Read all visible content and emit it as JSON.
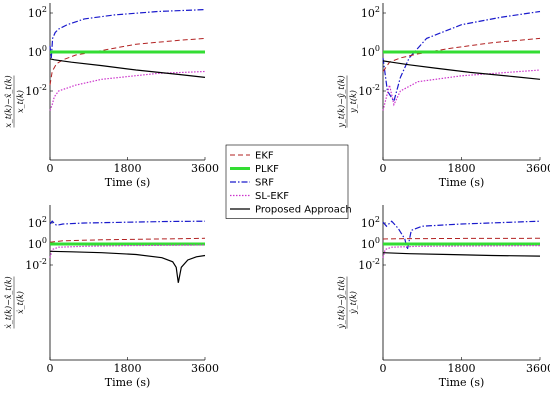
{
  "legend": [
    {
      "key": "ekf",
      "label": "EKF",
      "color": "#b22222",
      "dash": "5,3",
      "width": 1
    },
    {
      "key": "plkf",
      "label": "PLKF",
      "color": "#33dd33",
      "dash": "",
      "width": 3
    },
    {
      "key": "srf",
      "label": "SRF",
      "color": "#1a1acc",
      "dash": "6,2,1.5,2",
      "width": 1.2
    },
    {
      "key": "slekf",
      "label": "SL-EKF",
      "color": "#cc33cc",
      "dash": "1.5,1.5",
      "width": 1.2
    },
    {
      "key": "proposed",
      "label": "Proposed Approach",
      "color": "#000000",
      "dash": "",
      "width": 1.2
    }
  ],
  "chart_data": [
    {
      "id": "top-left",
      "type": "line",
      "xlabel": "Time (s)",
      "ylabel": "(x_t(k) − x̂_t(k)) / x_t(k)",
      "ylabel_num": "x_t(k)−x̂_t(k)",
      "ylabel_den": "x_t(k)",
      "xticks": [
        "0",
        "1800",
        "3600"
      ],
      "yticks": [
        "10^2",
        "10^0",
        "10^-2"
      ],
      "scale": "log",
      "xlim": [
        0,
        3600
      ],
      "series": [
        {
          "key": "srf",
          "x": [
            0,
            30,
            60,
            120,
            200,
            400,
            800,
            1500,
            2500,
            3600
          ],
          "y": [
            2,
            0.5,
            5,
            10,
            15,
            25,
            50,
            80,
            120,
            150
          ]
        },
        {
          "key": "ekf",
          "x": [
            0,
            50,
            150,
            300,
            600,
            1200,
            2000,
            3000,
            3600
          ],
          "y": [
            0.02,
            0.1,
            0.25,
            0.4,
            0.7,
            1.2,
            2.5,
            4,
            5
          ]
        },
        {
          "key": "plkf",
          "x": [
            0,
            3600
          ],
          "y": [
            1,
            1
          ]
        },
        {
          "key": "slekf",
          "x": [
            0,
            50,
            100,
            200,
            600,
            1200,
            2500,
            3600
          ],
          "y": [
            0.001,
            0.002,
            0.005,
            0.01,
            0.02,
            0.04,
            0.08,
            0.1
          ]
        },
        {
          "key": "proposed",
          "x": [
            0,
            100,
            500,
            1200,
            2000,
            3000,
            3600
          ],
          "y": [
            0.45,
            0.4,
            0.3,
            0.2,
            0.12,
            0.07,
            0.05
          ]
        }
      ]
    },
    {
      "id": "top-right",
      "type": "line",
      "xlabel": "Time (s)",
      "ylabel": "(y_t(k) − ŷ_t(k)) / y_t(k)",
      "ylabel_num": "y_t(k)−ŷ_t(k)",
      "ylabel_den": "y_t(k)",
      "xticks": [
        "0",
        "1800",
        "3600"
      ],
      "yticks": [
        "10^2",
        "10^0",
        "10^-2"
      ],
      "scale": "log",
      "xlim": [
        0,
        3600
      ],
      "series": [
        {
          "key": "srf",
          "x": [
            0,
            100,
            250,
            400,
            600,
            1000,
            1800,
            2700,
            3600
          ],
          "y": [
            0.5,
            0.01,
            0.003,
            0.05,
            0.5,
            5,
            25,
            60,
            120
          ]
        },
        {
          "key": "ekf",
          "x": [
            0,
            150,
            400,
            800,
            1500,
            2500,
            3600
          ],
          "y": [
            0.1,
            0.3,
            0.5,
            0.8,
            1.5,
            3,
            5
          ]
        },
        {
          "key": "plkf",
          "x": [
            0,
            3600
          ],
          "y": [
            1,
            1
          ]
        },
        {
          "key": "slekf",
          "x": [
            0,
            150,
            250,
            400,
            800,
            1800,
            3600
          ],
          "y": [
            0.001,
            0.02,
            0.002,
            0.01,
            0.03,
            0.06,
            0.12
          ]
        },
        {
          "key": "proposed",
          "x": [
            0,
            200,
            600,
            1200,
            2000,
            3000,
            3600
          ],
          "y": [
            0.35,
            0.3,
            0.22,
            0.15,
            0.09,
            0.055,
            0.04
          ]
        }
      ]
    },
    {
      "id": "bottom-left",
      "type": "line",
      "xlabel": "Time (s)",
      "ylabel": "(ẋ_t(k) − x̂̇_t(k)) / ẋ_t(k)",
      "ylabel_num": "ẋ_t(k)−x̂̇_t(k)",
      "ylabel_den": "ẋ_t(k)",
      "xticks": [
        "0",
        "1800",
        "3600"
      ],
      "yticks": [
        "10^2",
        "10^0",
        "10^-2"
      ],
      "scale": "log",
      "xlim": [
        0,
        3600
      ],
      "series": [
        {
          "key": "srf",
          "x": [
            0,
            50,
            150,
            300,
            800,
            1800,
            2700,
            3600
          ],
          "y": [
            80,
            150,
            60,
            80,
            100,
            120,
            140,
            150
          ]
        },
        {
          "key": "ekf",
          "x": [
            0,
            300,
            1200,
            2500,
            3600
          ],
          "y": [
            1.5,
            2,
            2.5,
            3,
            3.5
          ]
        },
        {
          "key": "plkf",
          "x": [
            0,
            3600
          ],
          "y": [
            1,
            1
          ]
        },
        {
          "key": "slekf",
          "x": [
            0,
            50,
            200,
            800,
            1800,
            3600
          ],
          "y": [
            0.05,
            0.3,
            0.5,
            0.6,
            0.7,
            0.8
          ]
        },
        {
          "key": "proposed",
          "x": [
            0,
            500,
            1200,
            2000,
            2600,
            2850,
            2930,
            2980,
            3050,
            3200,
            3400,
            3600
          ],
          "y": [
            0.2,
            0.18,
            0.15,
            0.1,
            0.05,
            0.02,
            0.006,
            0.0002,
            0.006,
            0.03,
            0.06,
            0.08
          ]
        }
      ]
    },
    {
      "id": "bottom-right",
      "type": "line",
      "xlabel": "Time (s)",
      "ylabel": "(ẏ_t(k) − ŷ̇_t(k)) / ẏ_t(k)",
      "ylabel_num": "ẏ_t(k)−ŷ̇_t(k)",
      "ylabel_den": "ẏ_t(k)",
      "xticks": [
        "0",
        "1800",
        "3600"
      ],
      "yticks": [
        "10^2",
        "10^0",
        "10^-2"
      ],
      "scale": "log",
      "xlim": [
        0,
        3600
      ],
      "series": [
        {
          "key": "srf",
          "x": [
            0,
            80,
            200,
            350,
            500,
            560,
            650,
            900,
            1800,
            2700,
            3600
          ],
          "y": [
            120,
            50,
            150,
            30,
            3,
            0.3,
            20,
            50,
            80,
            110,
            150
          ]
        },
        {
          "key": "ekf",
          "x": [
            0,
            300,
            1000,
            2000,
            3600
          ],
          "y": [
            3,
            3.2,
            3.3,
            3.4,
            3.5
          ]
        },
        {
          "key": "plkf",
          "x": [
            0,
            3600
          ],
          "y": [
            1,
            1
          ]
        },
        {
          "key": "slekf",
          "x": [
            0,
            50,
            200,
            800,
            3600
          ],
          "y": [
            0.05,
            0.3,
            0.5,
            0.6,
            0.7
          ]
        },
        {
          "key": "proposed",
          "x": [
            0,
            600,
            1500,
            2500,
            3600
          ],
          "y": [
            0.15,
            0.12,
            0.1,
            0.08,
            0.07
          ]
        }
      ]
    }
  ]
}
